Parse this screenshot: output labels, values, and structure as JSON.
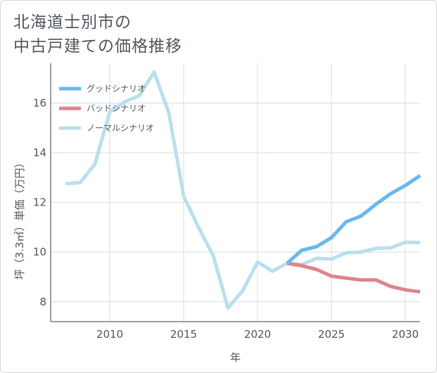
{
  "title_lines": [
    "北海道士別市の",
    "中古戸建ての価格推移"
  ],
  "chart_data": {
    "type": "line",
    "xlabel": "年",
    "ylabel": "坪（3.3㎡）単価（万円）",
    "xlim": [
      2006,
      2031
    ],
    "ylim": [
      7.2,
      17.6
    ],
    "x_ticks": [
      2010,
      2015,
      2020,
      2025,
      2030
    ],
    "y_ticks": [
      8,
      10,
      12,
      14,
      16
    ],
    "grid": true,
    "legend_position": "top-left",
    "series": [
      {
        "name": "グッドシナリオ",
        "color": "#6bb8ea",
        "x": [
          2022,
          2023,
          2024,
          2025,
          2026,
          2027,
          2028,
          2029,
          2030,
          2031
        ],
        "y": [
          9.55,
          10.08,
          10.22,
          10.58,
          11.22,
          11.45,
          11.92,
          12.35,
          12.68,
          13.08
        ]
      },
      {
        "name": "バッドシナリオ",
        "color": "#e0848c",
        "x": [
          2022,
          2023,
          2024,
          2025,
          2026,
          2027,
          2028,
          2029,
          2030,
          2031
        ],
        "y": [
          9.55,
          9.45,
          9.3,
          9.03,
          8.95,
          8.88,
          8.88,
          8.62,
          8.48,
          8.4
        ]
      },
      {
        "name": "ノーマルシナリオ",
        "color": "#badfee",
        "x": [
          2007,
          2008,
          2009,
          2010,
          2011,
          2012,
          2013,
          2014,
          2015,
          2016,
          2017,
          2018,
          2019,
          2020,
          2021,
          2022,
          2023,
          2024,
          2025,
          2026,
          2027,
          2028,
          2029,
          2030,
          2031
        ],
        "y": [
          12.75,
          12.8,
          13.55,
          15.65,
          16.05,
          16.3,
          17.25,
          15.6,
          12.25,
          11.0,
          9.85,
          7.75,
          8.45,
          9.6,
          9.23,
          9.55,
          9.5,
          9.75,
          9.72,
          9.97,
          10.0,
          10.15,
          10.17,
          10.4,
          10.38
        ]
      }
    ]
  }
}
